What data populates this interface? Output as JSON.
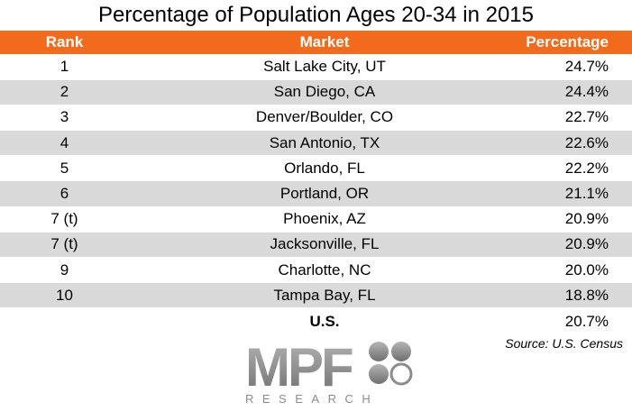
{
  "chart_data": {
    "type": "table",
    "title": "Percentage of Population Ages 20-34 in 2015",
    "columns": [
      "Rank",
      "Market",
      "Percentage"
    ],
    "rows": [
      {
        "rank": "1",
        "market": "Salt Lake City, UT",
        "percentage": "24.7%"
      },
      {
        "rank": "2",
        "market": "San Diego, CA",
        "percentage": "24.4%"
      },
      {
        "rank": "3",
        "market": "Denver/Boulder, CO",
        "percentage": "22.7%"
      },
      {
        "rank": "4",
        "market": "San Antonio, TX",
        "percentage": "22.6%"
      },
      {
        "rank": "5",
        "market": "Orlando, FL",
        "percentage": "22.2%"
      },
      {
        "rank": "6",
        "market": "Portland, OR",
        "percentage": "21.1%"
      },
      {
        "rank": "7 (t)",
        "market": "Phoenix, AZ",
        "percentage": "20.9%"
      },
      {
        "rank": "7 (t)",
        "market": "Jacksonville, FL",
        "percentage": "20.9%"
      },
      {
        "rank": "9",
        "market": "Charlotte, NC",
        "percentage": "20.0%"
      },
      {
        "rank": "10",
        "market": "Tampa Bay, FL",
        "percentage": "18.8%"
      }
    ],
    "total": {
      "market": "U.S.",
      "percentage": "20.7%"
    },
    "source": "Source: U.S. Census"
  },
  "logo": {
    "word": "MPF",
    "subword": "RESEARCH"
  },
  "colors": {
    "header_bg": "#f26b1d",
    "header_text": "#ffffff",
    "row_shade": "#d9d9d9",
    "logo_gray": "#8c8c8c"
  }
}
